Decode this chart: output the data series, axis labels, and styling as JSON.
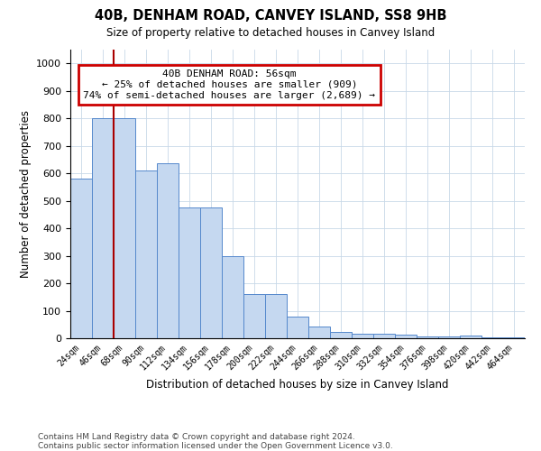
{
  "title": "40B, DENHAM ROAD, CANVEY ISLAND, SS8 9HB",
  "subtitle": "Size of property relative to detached houses in Canvey Island",
  "xlabel": "Distribution of detached houses by size in Canvey Island",
  "ylabel": "Number of detached properties",
  "footnote1": "Contains HM Land Registry data © Crown copyright and database right 2024.",
  "footnote2": "Contains public sector information licensed under the Open Government Licence v3.0.",
  "annotation_title": "40B DENHAM ROAD: 56sqm",
  "annotation_line1": "← 25% of detached houses are smaller (909)",
  "annotation_line2": "74% of semi-detached houses are larger (2,689) →",
  "bar_color": "#c5d8f0",
  "bar_edge_color": "#5588cc",
  "vline_color": "#aa0000",
  "annotation_box_edgecolor": "#cc0000",
  "categories": [
    "24sqm",
    "46sqm",
    "68sqm",
    "90sqm",
    "112sqm",
    "134sqm",
    "156sqm",
    "178sqm",
    "200sqm",
    "222sqm",
    "244sqm",
    "266sqm",
    "288sqm",
    "310sqm",
    "332sqm",
    "354sqm",
    "376sqm",
    "398sqm",
    "420sqm",
    "442sqm",
    "464sqm"
  ],
  "values": [
    580,
    800,
    800,
    610,
    635,
    475,
    475,
    300,
    160,
    160,
    78,
    42,
    22,
    18,
    18,
    12,
    5,
    5,
    10,
    3,
    2
  ],
  "ylim": [
    0,
    1050
  ],
  "yticks": [
    0,
    100,
    200,
    300,
    400,
    500,
    600,
    700,
    800,
    900,
    1000
  ],
  "vline_x_index": 1.5,
  "background_color": "#ffffff",
  "grid_color": "#c8d8e8"
}
